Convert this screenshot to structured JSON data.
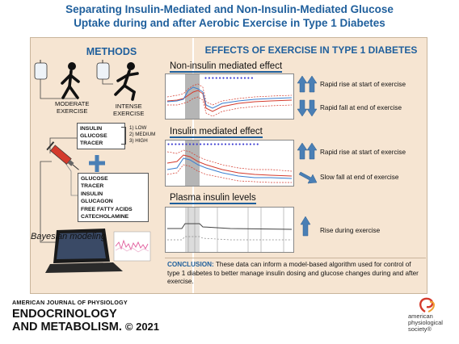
{
  "title": {
    "line1": "Separating Insulin-Mediated and Non-Insulin-Mediated Glucose",
    "line2": "Uptake during and after Aerobic Exercise in Type 1 Diabetes"
  },
  "methods": {
    "heading": "METHODS",
    "moderate_label": "MODERATE\nEXERCISE",
    "intense_label": "INTENSE\nEXERCISE",
    "infusion_box": [
      "INSULIN",
      "GLUCOSE",
      "TRACER"
    ],
    "levels": [
      "1) LOW",
      "2) MEDIUM",
      "3) HIGH"
    ],
    "plus": "+",
    "measure_box": [
      "GLUCOSE",
      "TRACER",
      "INSULIN",
      "GLUCAGON",
      "FREE FATTY ACIDS",
      "CATECHOLAMINE"
    ],
    "modeling_label": "Bayesian modeling"
  },
  "effects": {
    "heading": "EFFECTS OF EXERCISE IN TYPE 1 DIABETES",
    "non_insulin": {
      "title": "Non-insulin mediated effect",
      "rise_text": "Rapid rise at start of exercise",
      "fall_text": "Rapid fall at end of exercise"
    },
    "insulin": {
      "title": "Insulin mediated effect",
      "rise_text": "Rapid rise at start of exercise",
      "fall_text": "Slow fall at end of exercise"
    },
    "plasma": {
      "title": "Plasma insulin levels",
      "rise_text": "Rise during exercise"
    }
  },
  "conclusion": {
    "label": "CONCLUSION:",
    "text": " These data can inform a model-based algorithm used for control of type 1 diabetes to better manage insulin dosing and glucose changes during and after exercise."
  },
  "footer": {
    "journal_line1": "AMERICAN JOURNAL OF PHYSIOLOGY",
    "journal_line2": "ENDOCRINOLOGY",
    "journal_line3": "AND METABOLISM.",
    "copyright": "© 2021",
    "society_line1": "american",
    "society_line2": "physiological",
    "society_line3": "society®"
  },
  "colors": {
    "title_blue": "#1f5f9c",
    "panel_bg": "#f6e5d2",
    "arrow_blue": "#4a7fb5",
    "accent_red": "#d43a2c"
  }
}
